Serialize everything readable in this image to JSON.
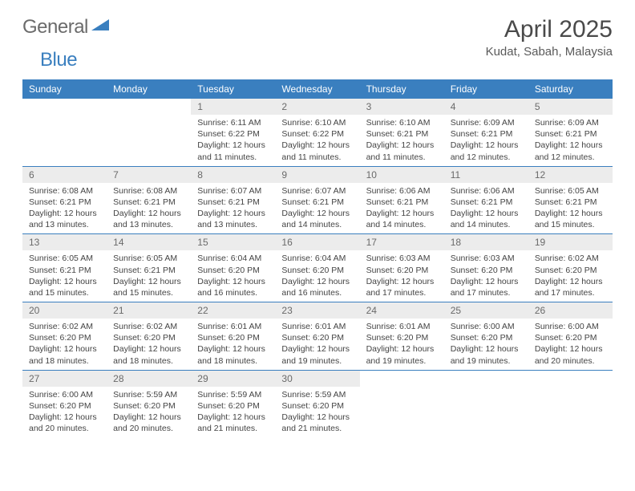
{
  "logo": {
    "text1": "General",
    "text2": "Blue"
  },
  "title": "April 2025",
  "location": "Kudat, Sabah, Malaysia",
  "colors": {
    "header_bg": "#3a7fbf",
    "header_text": "#ffffff",
    "daynum_bg": "#ececec",
    "daynum_text": "#6a6a6a",
    "body_text": "#444444",
    "rule": "#3a7fbf",
    "logo_gray": "#6b6b6b",
    "logo_blue": "#3a7fbf"
  },
  "weekdays": [
    "Sunday",
    "Monday",
    "Tuesday",
    "Wednesday",
    "Thursday",
    "Friday",
    "Saturday"
  ],
  "weeks": [
    [
      {
        "n": "",
        "lines": []
      },
      {
        "n": "",
        "lines": []
      },
      {
        "n": "1",
        "lines": [
          "Sunrise: 6:11 AM",
          "Sunset: 6:22 PM",
          "Daylight: 12 hours",
          "and 11 minutes."
        ]
      },
      {
        "n": "2",
        "lines": [
          "Sunrise: 6:10 AM",
          "Sunset: 6:22 PM",
          "Daylight: 12 hours",
          "and 11 minutes."
        ]
      },
      {
        "n": "3",
        "lines": [
          "Sunrise: 6:10 AM",
          "Sunset: 6:21 PM",
          "Daylight: 12 hours",
          "and 11 minutes."
        ]
      },
      {
        "n": "4",
        "lines": [
          "Sunrise: 6:09 AM",
          "Sunset: 6:21 PM",
          "Daylight: 12 hours",
          "and 12 minutes."
        ]
      },
      {
        "n": "5",
        "lines": [
          "Sunrise: 6:09 AM",
          "Sunset: 6:21 PM",
          "Daylight: 12 hours",
          "and 12 minutes."
        ]
      }
    ],
    [
      {
        "n": "6",
        "lines": [
          "Sunrise: 6:08 AM",
          "Sunset: 6:21 PM",
          "Daylight: 12 hours",
          "and 13 minutes."
        ]
      },
      {
        "n": "7",
        "lines": [
          "Sunrise: 6:08 AM",
          "Sunset: 6:21 PM",
          "Daylight: 12 hours",
          "and 13 minutes."
        ]
      },
      {
        "n": "8",
        "lines": [
          "Sunrise: 6:07 AM",
          "Sunset: 6:21 PM",
          "Daylight: 12 hours",
          "and 13 minutes."
        ]
      },
      {
        "n": "9",
        "lines": [
          "Sunrise: 6:07 AM",
          "Sunset: 6:21 PM",
          "Daylight: 12 hours",
          "and 14 minutes."
        ]
      },
      {
        "n": "10",
        "lines": [
          "Sunrise: 6:06 AM",
          "Sunset: 6:21 PM",
          "Daylight: 12 hours",
          "and 14 minutes."
        ]
      },
      {
        "n": "11",
        "lines": [
          "Sunrise: 6:06 AM",
          "Sunset: 6:21 PM",
          "Daylight: 12 hours",
          "and 14 minutes."
        ]
      },
      {
        "n": "12",
        "lines": [
          "Sunrise: 6:05 AM",
          "Sunset: 6:21 PM",
          "Daylight: 12 hours",
          "and 15 minutes."
        ]
      }
    ],
    [
      {
        "n": "13",
        "lines": [
          "Sunrise: 6:05 AM",
          "Sunset: 6:21 PM",
          "Daylight: 12 hours",
          "and 15 minutes."
        ]
      },
      {
        "n": "14",
        "lines": [
          "Sunrise: 6:05 AM",
          "Sunset: 6:21 PM",
          "Daylight: 12 hours",
          "and 15 minutes."
        ]
      },
      {
        "n": "15",
        "lines": [
          "Sunrise: 6:04 AM",
          "Sunset: 6:20 PM",
          "Daylight: 12 hours",
          "and 16 minutes."
        ]
      },
      {
        "n": "16",
        "lines": [
          "Sunrise: 6:04 AM",
          "Sunset: 6:20 PM",
          "Daylight: 12 hours",
          "and 16 minutes."
        ]
      },
      {
        "n": "17",
        "lines": [
          "Sunrise: 6:03 AM",
          "Sunset: 6:20 PM",
          "Daylight: 12 hours",
          "and 17 minutes."
        ]
      },
      {
        "n": "18",
        "lines": [
          "Sunrise: 6:03 AM",
          "Sunset: 6:20 PM",
          "Daylight: 12 hours",
          "and 17 minutes."
        ]
      },
      {
        "n": "19",
        "lines": [
          "Sunrise: 6:02 AM",
          "Sunset: 6:20 PM",
          "Daylight: 12 hours",
          "and 17 minutes."
        ]
      }
    ],
    [
      {
        "n": "20",
        "lines": [
          "Sunrise: 6:02 AM",
          "Sunset: 6:20 PM",
          "Daylight: 12 hours",
          "and 18 minutes."
        ]
      },
      {
        "n": "21",
        "lines": [
          "Sunrise: 6:02 AM",
          "Sunset: 6:20 PM",
          "Daylight: 12 hours",
          "and 18 minutes."
        ]
      },
      {
        "n": "22",
        "lines": [
          "Sunrise: 6:01 AM",
          "Sunset: 6:20 PM",
          "Daylight: 12 hours",
          "and 18 minutes."
        ]
      },
      {
        "n": "23",
        "lines": [
          "Sunrise: 6:01 AM",
          "Sunset: 6:20 PM",
          "Daylight: 12 hours",
          "and 19 minutes."
        ]
      },
      {
        "n": "24",
        "lines": [
          "Sunrise: 6:01 AM",
          "Sunset: 6:20 PM",
          "Daylight: 12 hours",
          "and 19 minutes."
        ]
      },
      {
        "n": "25",
        "lines": [
          "Sunrise: 6:00 AM",
          "Sunset: 6:20 PM",
          "Daylight: 12 hours",
          "and 19 minutes."
        ]
      },
      {
        "n": "26",
        "lines": [
          "Sunrise: 6:00 AM",
          "Sunset: 6:20 PM",
          "Daylight: 12 hours",
          "and 20 minutes."
        ]
      }
    ],
    [
      {
        "n": "27",
        "lines": [
          "Sunrise: 6:00 AM",
          "Sunset: 6:20 PM",
          "Daylight: 12 hours",
          "and 20 minutes."
        ]
      },
      {
        "n": "28",
        "lines": [
          "Sunrise: 5:59 AM",
          "Sunset: 6:20 PM",
          "Daylight: 12 hours",
          "and 20 minutes."
        ]
      },
      {
        "n": "29",
        "lines": [
          "Sunrise: 5:59 AM",
          "Sunset: 6:20 PM",
          "Daylight: 12 hours",
          "and 21 minutes."
        ]
      },
      {
        "n": "30",
        "lines": [
          "Sunrise: 5:59 AM",
          "Sunset: 6:20 PM",
          "Daylight: 12 hours",
          "and 21 minutes."
        ]
      },
      {
        "n": "",
        "lines": []
      },
      {
        "n": "",
        "lines": []
      },
      {
        "n": "",
        "lines": []
      }
    ]
  ]
}
